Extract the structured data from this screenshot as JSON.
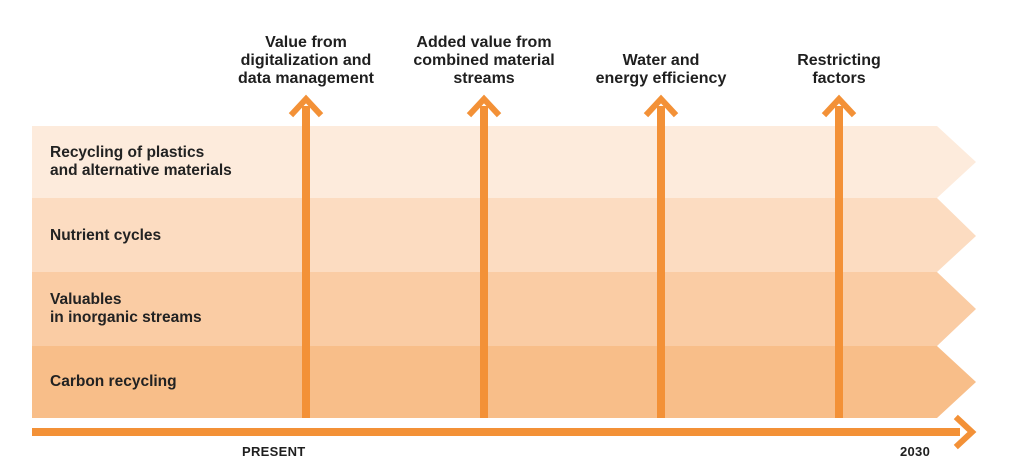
{
  "columns": [
    {
      "label": "Value from\ndigitalization and\ndata management"
    },
    {
      "label": "Added value from\ncombined material\nstreams"
    },
    {
      "label": "Water and\nenergy efficiency"
    },
    {
      "label": "Restricting\nfactors"
    }
  ],
  "rows": [
    {
      "label": "Recycling of plastics\nand alternative materials",
      "color": "#FDEBDC"
    },
    {
      "label": "Nutrient cycles",
      "color": "#FCDCC1"
    },
    {
      "label": "Valuables\nin inorganic streams",
      "color": "#FACCA4"
    },
    {
      "label": "Carbon recycling",
      "color": "#F8BE89"
    }
  ],
  "timeline": {
    "start_label": "PRESENT",
    "end_label": "2030"
  },
  "colors": {
    "accent": "#F39137"
  }
}
